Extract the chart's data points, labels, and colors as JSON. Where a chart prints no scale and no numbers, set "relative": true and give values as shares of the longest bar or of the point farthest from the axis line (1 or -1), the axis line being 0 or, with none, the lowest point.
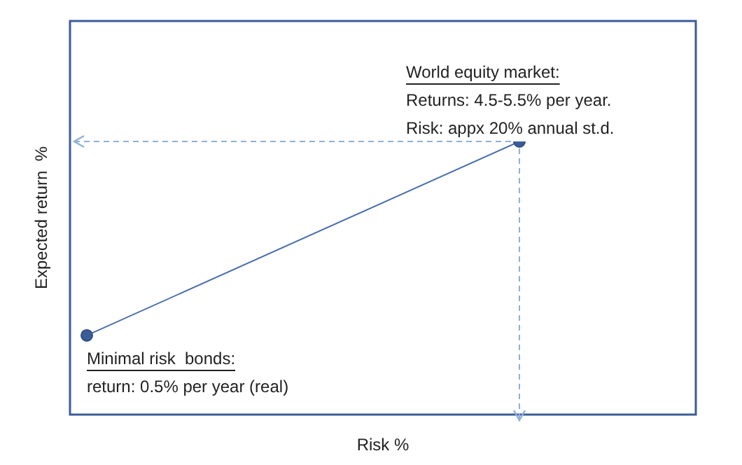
{
  "chart_data": {
    "type": "line",
    "relative": true,
    "xlabel": "Risk %",
    "ylabel": "Expected return  %",
    "categories": [
      null,
      null
    ],
    "series": [
      {
        "color": "#4a6fae",
        "values": [
          0.29,
          1
        ]
      }
    ],
    "marker": "circle",
    "legend": false,
    "annotations": [
      "World equity market:",
      "Returns: 4.5-5.5% per year.",
      "Risk: appx 20% annual st.d.",
      "Minimal risk  bonds:",
      "return: 0.5% per year (real)"
    ]
  }
}
